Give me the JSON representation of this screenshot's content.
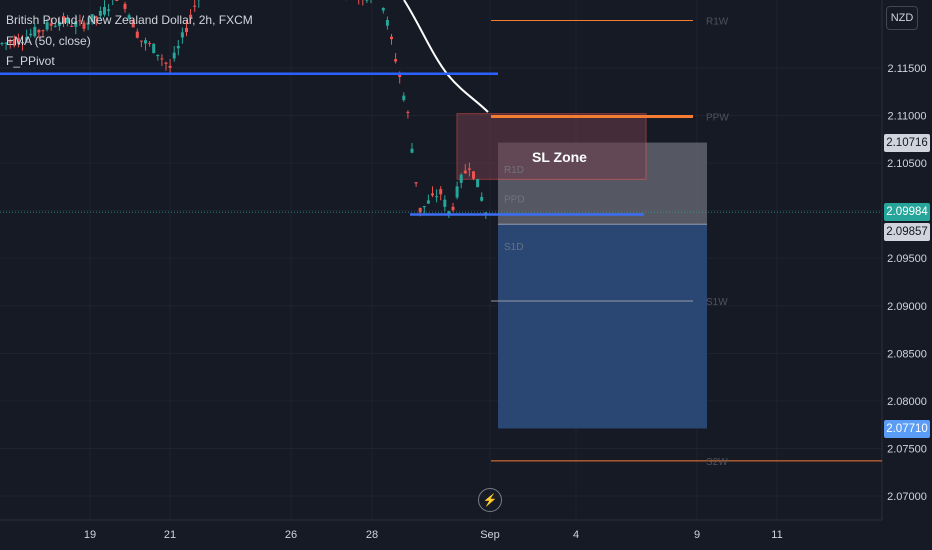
{
  "legend": {
    "symbol": "British Pound / New Zealand Dollar, 2h, FXCM",
    "indicator_ema": "EMA (50, close)",
    "indicator_pivot": "F_PPivot"
  },
  "currency": "NZD",
  "lightning_icon": "⚡",
  "zone_label": "SL Zone",
  "price_tags": {
    "sl_top": "2.10716",
    "current": "2.09984",
    "entry": "2.09857",
    "target": "2.07710"
  },
  "colors": {
    "background": "#161a25",
    "up": "#26a69a",
    "down": "#ef5350",
    "blue_line": "#2962ff",
    "orange_line": "#f57c33",
    "ema": "#ffffff",
    "target_zone": "#2b4a78",
    "stop_zone": "#6b3c48"
  },
  "chart_data": {
    "type": "candlestick",
    "title": "British Pound / New Zealand Dollar, 2h, FXCM",
    "y_axis": {
      "ticks": [
        "2.11500",
        "2.11000",
        "2.10500",
        "2.10000",
        "2.09500",
        "2.09000",
        "2.08500",
        "2.08000",
        "2.07500",
        "2.07000"
      ],
      "range": [
        2.0665,
        2.1225
      ],
      "unit": "NZD"
    },
    "x_axis": {
      "ticks": [
        "19",
        "21",
        "26",
        "28",
        "Sep",
        "4",
        "9",
        "11"
      ]
    },
    "pivot_levels": [
      {
        "label": "R1W",
        "value": 2.12
      },
      {
        "label": "PPW",
        "value": 2.1099
      },
      {
        "label": "R1D",
        "value": 2.1044
      },
      {
        "label": "PPD",
        "value": 2.1013
      },
      {
        "label": "S1D",
        "value": 2.0963
      },
      {
        "label": "S1W",
        "value": 2.0905
      },
      {
        "label": "S2W",
        "value": 2.0737
      }
    ],
    "horizontal_lines": [
      {
        "name": "resistance",
        "value": 2.1144
      },
      {
        "name": "support",
        "value": 2.0996
      }
    ],
    "position": {
      "entry": 2.09857,
      "stop": 2.10716,
      "target": 2.0771
    },
    "sl_zone": {
      "top": 2.1102,
      "bottom": 2.1033
    }
  }
}
